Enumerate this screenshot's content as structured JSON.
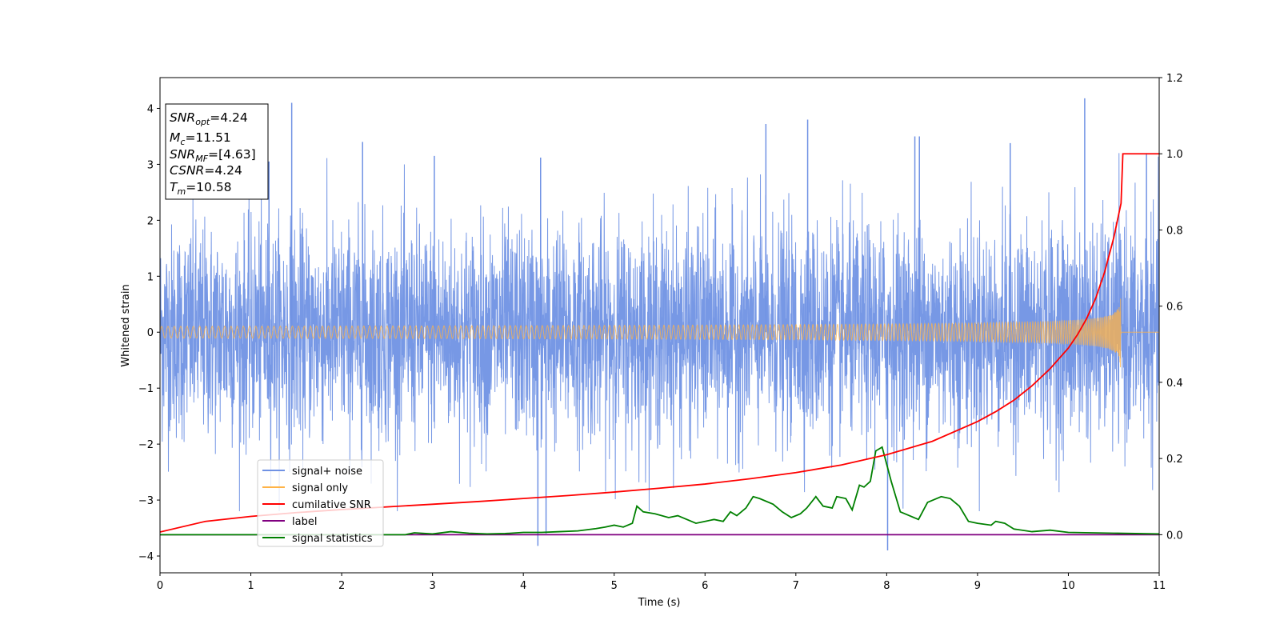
{
  "chart_data": {
    "type": "line",
    "xlabel": "Time (s)",
    "ylabel": "Whitened strain",
    "xlim": [
      0,
      11
    ],
    "ylim": [
      -4.3,
      4.55
    ],
    "y2lim": [
      -0.1,
      1.2
    ],
    "x_ticks": [
      "0",
      "1",
      "2",
      "3",
      "4",
      "5",
      "6",
      "7",
      "8",
      "9",
      "10",
      "11"
    ],
    "y_ticks": [
      "−4",
      "−3",
      "−2",
      "−1",
      "0",
      "1",
      "2",
      "3",
      "4"
    ],
    "y2_ticks": [
      "0.0",
      "0.2",
      "0.4",
      "0.6",
      "0.8",
      "1.0",
      "1.2"
    ],
    "legend": {
      "placement": "lower-left",
      "entries": [
        {
          "label": "signal+ noise",
          "color": "#7092e4"
        },
        {
          "label": "signal only",
          "color": "#ffb347"
        },
        {
          "label": "cumilative SNR",
          "color": "#ff0000"
        },
        {
          "label": "label",
          "color": "#800080"
        },
        {
          "label": "signal statistics",
          "color": "#008000"
        }
      ]
    },
    "info_box": {
      "snr_opt": {
        "base": "SNR",
        "sub": "opt",
        "value": "=4.24"
      },
      "mc": {
        "base": "M",
        "sub": "c",
        "value": "=11.51"
      },
      "snr_mf": {
        "base": "SNR",
        "sub": "MF",
        "value": "=[4.63]"
      },
      "csnr": {
        "base": "CSNR",
        "value": "=4.24"
      },
      "tm": {
        "base": "T",
        "sub": "m",
        "value": "=10.58"
      }
    },
    "series": [
      {
        "name": "signal+ noise",
        "axis": "left",
        "description": "whitened noise with amplitude ~±2, occasional spikes",
        "noise_sigma": 1.0,
        "spikes": [
          [
            1.45,
            4.1
          ],
          [
            10.18,
            4.18
          ],
          [
            6.67,
            3.72
          ],
          [
            7.13,
            3.8
          ],
          [
            2.23,
            3.4
          ],
          [
            8.01,
            -3.9
          ],
          [
            4.16,
            -3.82
          ],
          [
            4.25,
            -3.6
          ],
          [
            8.31,
            3.5
          ],
          [
            8.36,
            3.5
          ],
          [
            9.36,
            3.38
          ],
          [
            3.02,
            3.15
          ],
          [
            4.19,
            3.12
          ],
          [
            10.86,
            3.2
          ],
          [
            1.2,
            3.05
          ]
        ]
      },
      {
        "name": "signal only",
        "axis": "left",
        "description": "chirp growing to merger at Tm",
        "t_merger": 10.58,
        "peak_amplitude": 0.8
      },
      {
        "name": "cumilative SNR",
        "axis": "right",
        "x": [
          0,
          0.5,
          1,
          1.5,
          2,
          2.5,
          3,
          3.5,
          4,
          4.5,
          5,
          5.5,
          6,
          6.5,
          7,
          7.5,
          8,
          8.5,
          9,
          9.2,
          9.4,
          9.6,
          9.8,
          10,
          10.1,
          10.2,
          10.3,
          10.4,
          10.5,
          10.58,
          10.6,
          11
        ],
        "y": [
          0.007,
          0.035,
          0.048,
          0.058,
          0.066,
          0.073,
          0.08,
          0.087,
          0.095,
          0.103,
          0.112,
          0.122,
          0.133,
          0.147,
          0.163,
          0.183,
          0.21,
          0.245,
          0.297,
          0.323,
          0.353,
          0.391,
          0.436,
          0.49,
          0.525,
          0.567,
          0.62,
          0.69,
          0.78,
          0.87,
          1.0,
          1.0
        ]
      },
      {
        "name": "label",
        "axis": "right",
        "x": [
          0,
          11
        ],
        "y": [
          0,
          0
        ]
      },
      {
        "name": "signal statistics",
        "axis": "right",
        "x": [
          0,
          2.7,
          2.8,
          3.0,
          3.2,
          3.4,
          3.6,
          3.8,
          4.0,
          4.2,
          4.4,
          4.6,
          4.8,
          4.9,
          5.0,
          5.1,
          5.2,
          5.25,
          5.32,
          5.45,
          5.6,
          5.7,
          5.9,
          6.0,
          6.1,
          6.2,
          6.28,
          6.35,
          6.45,
          6.53,
          6.6,
          6.75,
          6.85,
          6.95,
          7.05,
          7.12,
          7.22,
          7.3,
          7.4,
          7.45,
          7.55,
          7.62,
          7.7,
          7.75,
          7.82,
          7.88,
          7.95,
          8.05,
          8.15,
          8.25,
          8.35,
          8.45,
          8.6,
          8.7,
          8.8,
          8.9,
          9.0,
          9.15,
          9.2,
          9.3,
          9.4,
          9.6,
          9.8,
          10.0,
          10.5,
          11.0
        ],
        "y": [
          0.0,
          0.0,
          0.005,
          0.002,
          0.008,
          0.004,
          0.002,
          0.003,
          0.006,
          0.006,
          0.008,
          0.01,
          0.016,
          0.02,
          0.025,
          0.02,
          0.03,
          0.075,
          0.06,
          0.055,
          0.045,
          0.05,
          0.03,
          0.035,
          0.04,
          0.035,
          0.06,
          0.05,
          0.07,
          0.1,
          0.095,
          0.08,
          0.06,
          0.045,
          0.055,
          0.07,
          0.1,
          0.075,
          0.07,
          0.1,
          0.095,
          0.065,
          0.13,
          0.125,
          0.14,
          0.22,
          0.23,
          0.14,
          0.06,
          0.05,
          0.04,
          0.085,
          0.1,
          0.095,
          0.075,
          0.035,
          0.03,
          0.025,
          0.035,
          0.03,
          0.015,
          0.008,
          0.012,
          0.006,
          0.004,
          0.002
        ]
      }
    ]
  }
}
